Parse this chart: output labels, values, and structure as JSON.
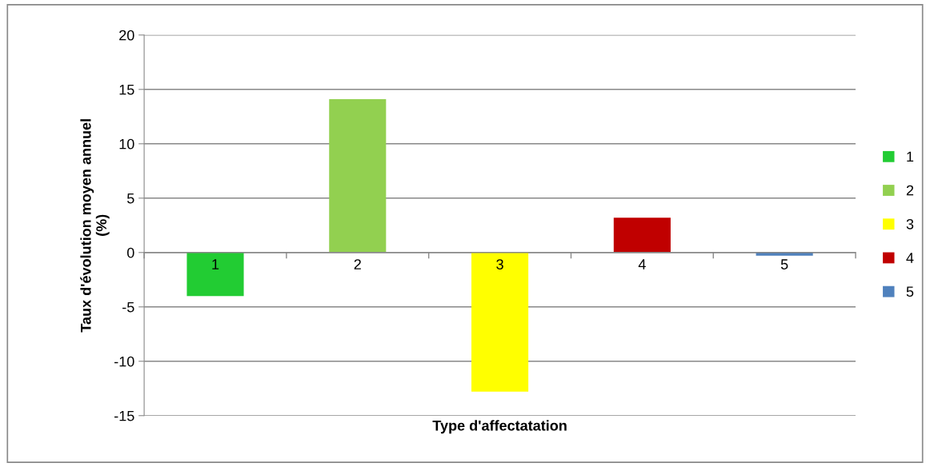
{
  "chart_data": {
    "type": "bar",
    "xlabel": "Type d'affectatation",
    "ylabel": "Taux d'évolution moyen annuel\n(%)",
    "categories": [
      "1",
      "2",
      "3",
      "4",
      "5"
    ],
    "series": [
      {
        "name": "1",
        "color": "#22cc33",
        "values": [
          -4.0,
          null,
          null,
          null,
          null
        ]
      },
      {
        "name": "2",
        "color": "#92d050",
        "values": [
          null,
          14.1,
          null,
          null,
          null
        ]
      },
      {
        "name": "3",
        "color": "#ffff00",
        "values": [
          null,
          null,
          -12.8,
          null,
          null
        ]
      },
      {
        "name": "4",
        "color": "#c00000",
        "values": [
          null,
          null,
          null,
          3.2,
          null
        ]
      },
      {
        "name": "5",
        "color": "#4f81bd",
        "values": [
          null,
          null,
          null,
          null,
          -0.3
        ]
      }
    ],
    "ylim": [
      -15,
      20
    ],
    "yticks": [
      -15,
      -10,
      -5,
      0,
      5,
      10,
      15,
      20
    ],
    "grid": "y",
    "legend": "right"
  }
}
